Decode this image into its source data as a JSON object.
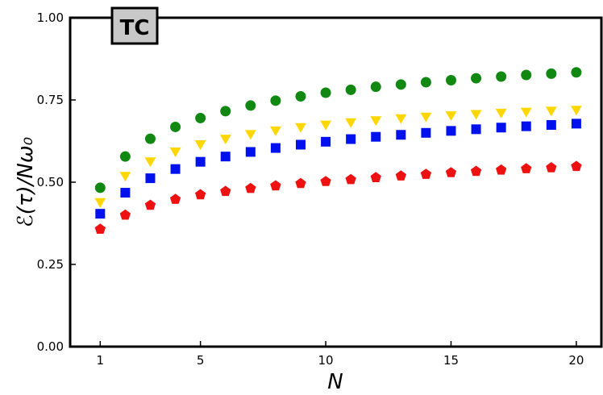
{
  "chart_data": {
    "type": "scatter",
    "title": "",
    "badge": "TC",
    "xlabel": "N",
    "ylabel": "ℰ(τ)/Nω₀",
    "xlim": [
      -0.2,
      21
    ],
    "ylim": [
      0.0,
      1.0
    ],
    "xticks": [
      1,
      5,
      10,
      15,
      20
    ],
    "yticks": [
      0.0,
      0.25,
      0.5,
      0.75,
      1.0
    ],
    "ytick_labels": [
      "0.00",
      "0.25",
      "0.50",
      "0.75",
      "1.00"
    ],
    "grid": false,
    "x": [
      1,
      2,
      3,
      4,
      5,
      6,
      7,
      8,
      9,
      10,
      11,
      12,
      13,
      14,
      15,
      16,
      17,
      18,
      19,
      20
    ],
    "series": [
      {
        "marker": "circle",
        "color": "#118811",
        "values": [
          0.483,
          0.578,
          0.632,
          0.668,
          0.695,
          0.716,
          0.733,
          0.748,
          0.761,
          0.772,
          0.781,
          0.79,
          0.797,
          0.804,
          0.81,
          0.816,
          0.821,
          0.826,
          0.83,
          0.834
        ]
      },
      {
        "marker": "triangle-down",
        "color": "#FFD700",
        "values": [
          0.444,
          0.524,
          0.568,
          0.598,
          0.62,
          0.637,
          0.651,
          0.662,
          0.672,
          0.68,
          0.687,
          0.693,
          0.699,
          0.704,
          0.708,
          0.712,
          0.716,
          0.719,
          0.722,
          0.725
        ]
      },
      {
        "marker": "square",
        "color": "#0011EE",
        "values": [
          0.404,
          0.468,
          0.512,
          0.54,
          0.562,
          0.578,
          0.592,
          0.604,
          0.614,
          0.623,
          0.631,
          0.638,
          0.644,
          0.65,
          0.656,
          0.661,
          0.666,
          0.67,
          0.674,
          0.678
        ]
      },
      {
        "marker": "pentagon",
        "color": "#EE1111",
        "values": [
          0.357,
          0.4,
          0.43,
          0.448,
          0.462,
          0.472,
          0.481,
          0.489,
          0.496,
          0.502,
          0.508,
          0.514,
          0.519,
          0.524,
          0.529,
          0.533,
          0.537,
          0.541,
          0.544,
          0.548
        ]
      }
    ]
  }
}
